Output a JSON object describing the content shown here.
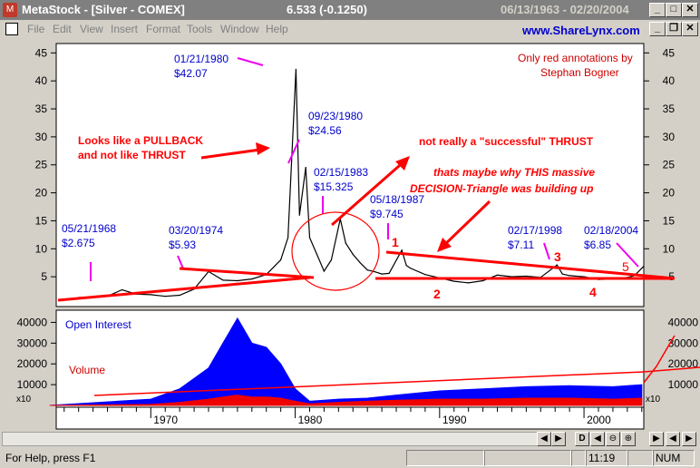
{
  "window": {
    "title": "MetaStock - [Silver - COMEX]",
    "price": "6.533 (-0.1250)",
    "date_range": "06/13/1963 - 02/20/2004"
  },
  "menu": {
    "items": [
      "File",
      "Edit",
      "View",
      "Insert",
      "Format",
      "Tools",
      "Window",
      "Help"
    ],
    "website": "www.ShareLynx.com"
  },
  "chart": {
    "credit_line1": "Only red annotations by",
    "credit_line2": "Stephan Bogner",
    "y_ticks": [
      "45",
      "40",
      "35",
      "30",
      "25",
      "20",
      "15",
      "10",
      "5"
    ],
    "vol_ticks": [
      "40000",
      "30000",
      "20000",
      "10000"
    ],
    "x_ticks": [
      "1970",
      "1980",
      "1990",
      "2000"
    ],
    "x10": "x10",
    "open_interest_label": "Open Interest",
    "volume_label": "Volume",
    "annotations": {
      "d1968": "05/21/1968",
      "p1968": "$2.675",
      "d1974": "03/20/1974",
      "p1974": "$5.93",
      "d1980a": "01/21/1980",
      "p1980a": "$42.07",
      "d1980b": "09/23/1980",
      "p1980b": "$24.56",
      "d1983": "02/15/1983",
      "p1983": "$15.325",
      "d1987": "05/18/1987",
      "p1987": "$9.745",
      "d1998": "02/17/1998",
      "p1998": "$7.11",
      "d2004": "02/18/2004",
      "p2004": "$6.85"
    },
    "red_notes": {
      "pullback1": "Looks like a PULLBACK",
      "pullback2": "and not like THRUST",
      "thrust": "not really a \"successful\" THRUST",
      "triangle1": "thats maybe why THIS massive",
      "triangle2": "DECISION-Triangle was building up",
      "n1": "1",
      "n2": "2",
      "n3": "3",
      "n4": "4",
      "n5": "5"
    }
  },
  "chart_data": {
    "type": "line",
    "title": "Silver - COMEX",
    "xlabel": "",
    "ylabel": "",
    "ylim": [
      0,
      45
    ],
    "x": [
      1965,
      1966,
      1967,
      1968,
      1969,
      1970,
      1971,
      1972,
      1973,
      1974,
      1975,
      1976,
      1977,
      1978,
      1979,
      1979.5,
      1980.05,
      1980.3,
      1980.73,
      1981,
      1981.5,
      1982,
      1982.5,
      1983.12,
      1983.5,
      1984,
      1984.5,
      1985,
      1985.5,
      1986,
      1986.5,
      1987.38,
      1987.7,
      1988,
      1989,
      1990,
      1991,
      1992,
      1993,
      1994,
      1995,
      1996,
      1997,
      1998.13,
      1998.5,
      1999,
      2000,
      2001,
      2002,
      2003,
      2003.5,
      2004.13
    ],
    "series": [
      {
        "name": "Silver",
        "values": [
          1.3,
          1.3,
          1.5,
          2.675,
          1.9,
          1.8,
          1.5,
          1.7,
          2.8,
          5.93,
          4.4,
          4.3,
          4.6,
          5.4,
          8,
          12,
          42.07,
          16,
          24.56,
          12,
          9,
          6,
          8,
          15.325,
          11,
          9,
          7.5,
          6.2,
          5.9,
          5.5,
          5.6,
          9.745,
          7,
          6.5,
          5.4,
          4.8,
          4.2,
          3.9,
          4.3,
          5.3,
          5,
          5.1,
          4.9,
          7.11,
          5.5,
          5.2,
          5,
          4.5,
          4.6,
          4.9,
          5.2,
          6.85
        ]
      }
    ],
    "volume_chart": {
      "type": "area",
      "ylim": [
        0,
        45000
      ],
      "x": [
        1963,
        1970,
        1972,
        1974,
        1975,
        1976,
        1977,
        1978,
        1979,
        1980,
        1981,
        1983,
        1985,
        1987,
        1990,
        1993,
        1996,
        1999,
        2002,
        2004
      ],
      "series": [
        {
          "name": "Open Interest",
          "values": [
            0,
            3000,
            8000,
            18000,
            30000,
            42000,
            30000,
            28000,
            20000,
            8000,
            2000,
            3000,
            3500,
            5000,
            7000,
            8000,
            9000,
            9500,
            9000,
            10000
          ]
        },
        {
          "name": "Volume",
          "values": [
            0,
            500,
            1500,
            3000,
            4000,
            5000,
            4000,
            4000,
            3500,
            2000,
            800,
            1500,
            2000,
            2500,
            3000,
            3000,
            3500,
            3500,
            3000,
            3500
          ]
        }
      ]
    }
  }
}
